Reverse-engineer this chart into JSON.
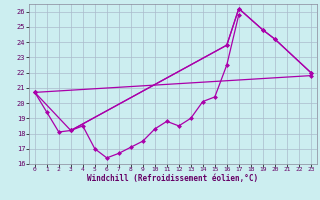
{
  "xlabel": "Windchill (Refroidissement éolien,°C)",
  "background_color": "#cceef0",
  "grid_color": "#aabbcc",
  "line_color": "#aa00aa",
  "xlim": [
    -0.5,
    23.5
  ],
  "ylim": [
    16,
    26.5
  ],
  "yticks": [
    16,
    17,
    18,
    19,
    20,
    21,
    22,
    23,
    24,
    25,
    26
  ],
  "xticks": [
    0,
    1,
    2,
    3,
    4,
    5,
    6,
    7,
    8,
    9,
    10,
    11,
    12,
    13,
    14,
    15,
    16,
    17,
    18,
    19,
    20,
    21,
    22,
    23
  ],
  "series1_x": [
    0,
    1,
    2,
    3,
    4,
    5,
    6,
    7,
    8,
    9,
    10,
    11,
    12,
    13,
    14,
    15,
    16,
    17
  ],
  "series1_y": [
    20.7,
    19.4,
    18.1,
    18.2,
    18.5,
    17.0,
    16.4,
    16.7,
    17.1,
    17.5,
    18.3,
    18.8,
    18.5,
    19.0,
    20.1,
    20.4,
    22.5,
    25.8
  ],
  "series2_x": [
    3,
    16,
    17,
    19,
    20,
    23
  ],
  "series2_y": [
    18.2,
    23.8,
    26.2,
    24.8,
    24.2,
    22.0
  ],
  "series3_x": [
    0,
    23
  ],
  "series3_y": [
    20.7,
    21.8
  ],
  "series4_x": [
    0,
    3,
    16,
    17,
    19,
    20,
    23
  ],
  "series4_y": [
    20.7,
    18.2,
    23.8,
    26.2,
    24.8,
    24.2,
    22.0
  ]
}
